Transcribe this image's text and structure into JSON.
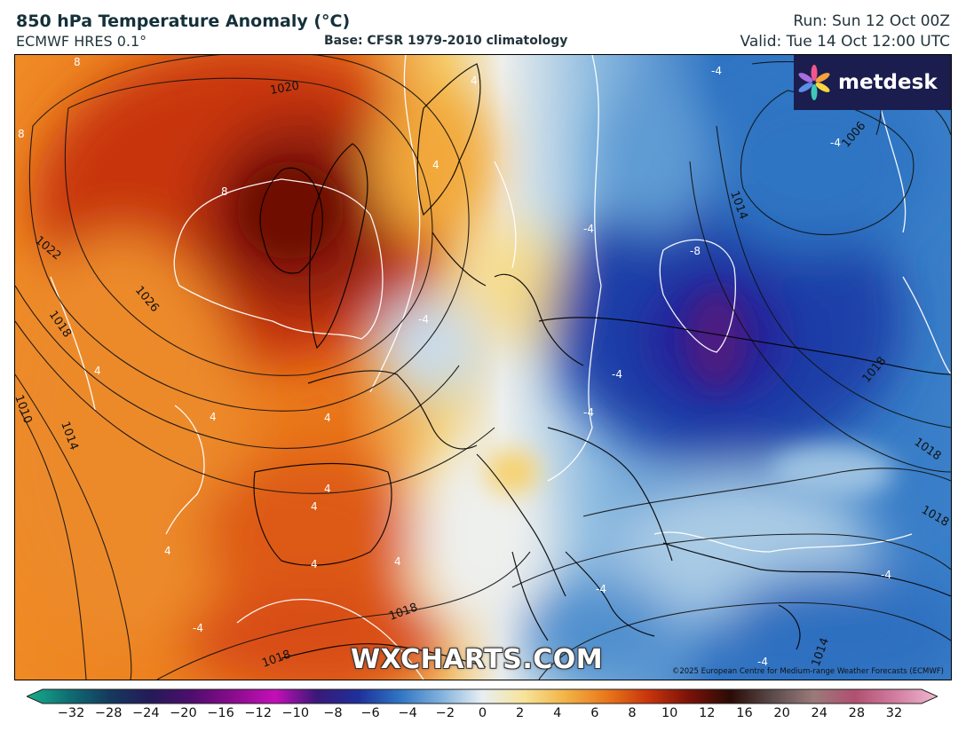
{
  "header": {
    "title": "850 hPa Temperature Anomaly (°C)",
    "model": "ECMWF HRES 0.1°",
    "base": "Base: CFSR 1979-2010 climatology",
    "run": "Run: Sun 12 Oct 00Z",
    "valid": "Valid: Tue 14 Oct 12:00 UTC"
  },
  "brand": {
    "logo_text": "metdesk",
    "logo_icon": "pinwheel-icon",
    "watermark": "WXCHARTS.COM",
    "copyright": "©2025 European Centre for Medium-range Weather Forecasts (ECMWF)"
  },
  "map": {
    "isobar_labels": [
      "1020",
      "1022",
      "1026",
      "1018",
      "1010",
      "1014",
      "1018",
      "1018",
      "1006",
      "1014",
      "1018",
      "1018",
      "1018",
      "1014"
    ],
    "anomaly_labels": [
      "8",
      "8",
      "8",
      "4",
      "4",
      "4",
      "4",
      "4",
      "4",
      "4",
      "4",
      "4",
      "4",
      "-4",
      "-4",
      "-4",
      "-4",
      "-8",
      "-4",
      "-4",
      "-4",
      "-4",
      "-4",
      "-4"
    ],
    "palette": {
      "deep_red": "#7a1208",
      "red": "#c8350c",
      "orange": "#e9751a",
      "light_orange": "#f3a33a",
      "yellow": "#f7d67c",
      "white": "#f1f3f1",
      "light_blue": "#a7c9e3",
      "blue": "#2f74c3",
      "dark_blue": "#1a2e9a",
      "purple": "#4b1a82"
    }
  },
  "colorbar": {
    "ticks": [
      "−32",
      "−28",
      "−24",
      "−20",
      "−16",
      "−12",
      "−10",
      "−8",
      "−6",
      "−4",
      "−2",
      "0",
      "2",
      "4",
      "6",
      "8",
      "10",
      "12",
      "16",
      "20",
      "24",
      "28",
      "32"
    ],
    "stops": [
      "#17b08c",
      "#0f6f73",
      "#143a5e",
      "#251a58",
      "#4f0d6e",
      "#8a0c8d",
      "#c40fb8",
      "#3a1878",
      "#1e2f9a",
      "#2f74c3",
      "#7fb1dc",
      "#e8eef3",
      "#f7e49a",
      "#f2b447",
      "#e9781b",
      "#c8350c",
      "#7a1208",
      "#2a0b06",
      "#5a4a4a",
      "#9a7a7a",
      "#b05070",
      "#d27ea0",
      "#f0b8d0"
    ]
  }
}
